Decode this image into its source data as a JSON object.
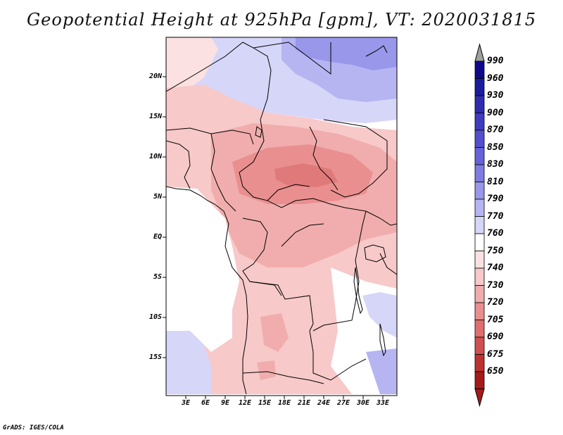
{
  "title": "Geopotential Height at 925hPa [gpm], VT: 2020031815",
  "credit": "GrADS: IGES/COLA",
  "map": {
    "variable": "Geopotential Height",
    "level": "925hPa",
    "units": "gpm",
    "valid_time": "2020031815",
    "lat_labels": [
      "20N",
      "15N",
      "10N",
      "5N",
      "EQ",
      "5S",
      "10S",
      "15S"
    ],
    "lon_labels": [
      "3E",
      "6E",
      "9E",
      "12E",
      "15E",
      "18E",
      "21E",
      "24E",
      "27E",
      "30E",
      "33E"
    ]
  },
  "colorbar": {
    "levels": [
      "990",
      "960",
      "930",
      "900",
      "870",
      "850",
      "830",
      "810",
      "790",
      "770",
      "760",
      "750",
      "740",
      "730",
      "720",
      "705",
      "690",
      "675",
      "650"
    ],
    "colors": [
      "#0d0a8a",
      "#1c1a9e",
      "#2e2cb0",
      "#3e3cc0",
      "#5250cf",
      "#6563d9",
      "#7e7ce2",
      "#9897ea",
      "#b6b5f2",
      "#d6d6f8",
      "#ffffff",
      "#fbe1e1",
      "#f7c9c9",
      "#f1adad",
      "#ea8f8f",
      "#e06e6e",
      "#d14f4f",
      "#bd3131",
      "#a51a1a"
    ]
  }
}
